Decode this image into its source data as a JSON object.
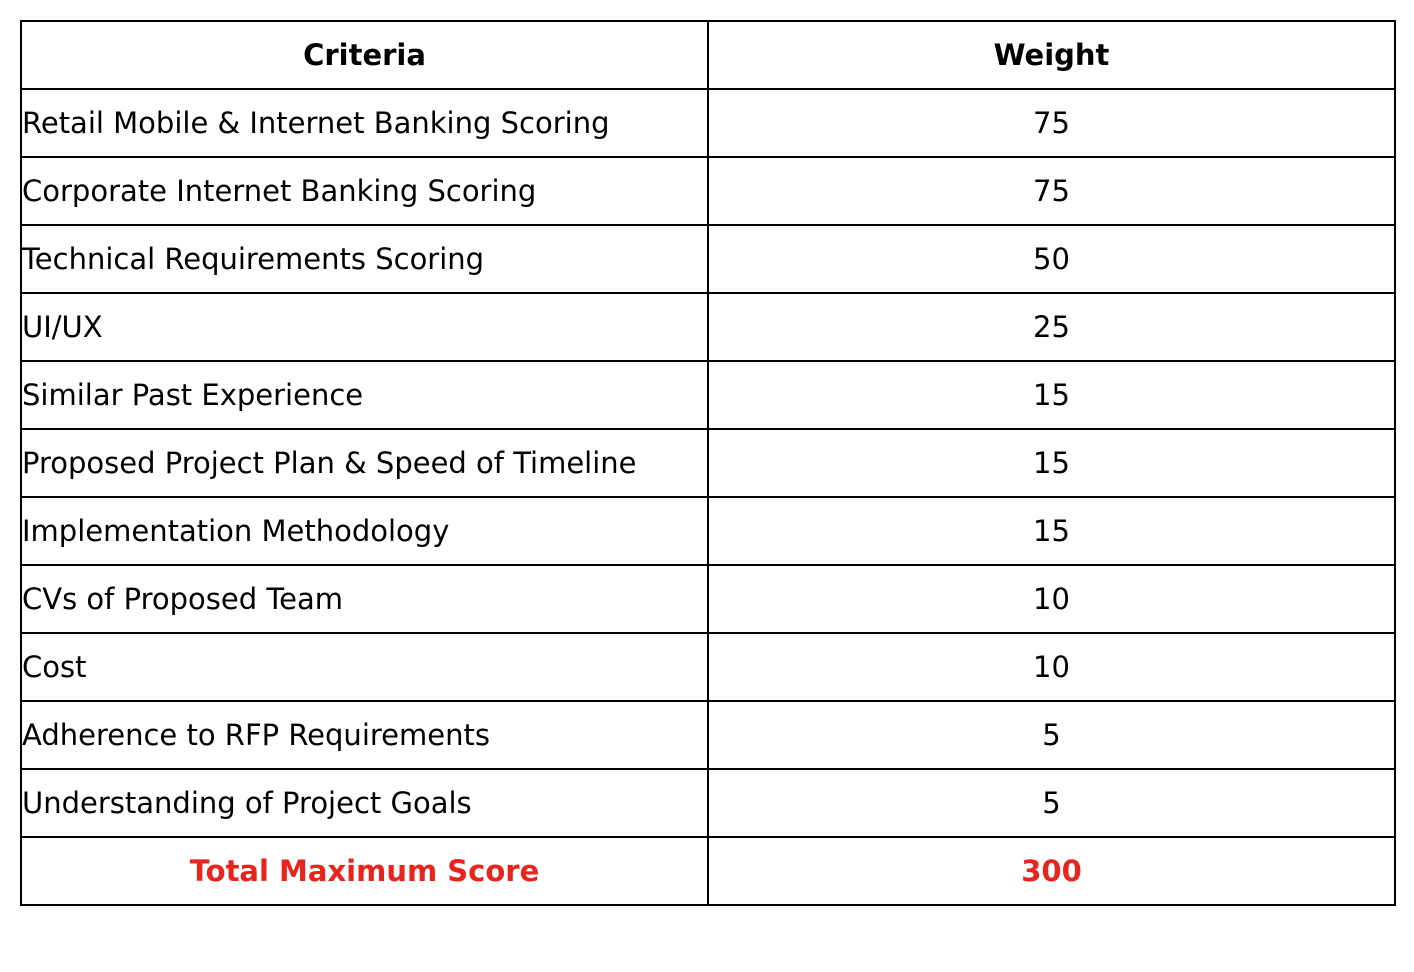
{
  "table": {
    "headers": {
      "criteria": "Criteria",
      "weight": "Weight"
    },
    "rows": [
      {
        "criteria": "Retail Mobile & Internet Banking Scoring",
        "weight": "75"
      },
      {
        "criteria": "Corporate Internet Banking Scoring",
        "weight": "75"
      },
      {
        "criteria": "Technical Requirements Scoring",
        "weight": "50"
      },
      {
        "criteria": "UI/UX",
        "weight": "25"
      },
      {
        "criteria": "Similar Past Experience",
        "weight": "15"
      },
      {
        "criteria": "Proposed Project Plan & Speed of Timeline",
        "weight": "15"
      },
      {
        "criteria": "Implementation Methodology",
        "weight": "15"
      },
      {
        "criteria": "CVs of Proposed Team",
        "weight": "10"
      },
      {
        "criteria": "Cost",
        "weight": "10"
      },
      {
        "criteria": "Adherence to RFP Requirements",
        "weight": "5"
      },
      {
        "criteria": "Understanding of Project Goals",
        "weight": "5"
      }
    ],
    "total": {
      "label": "Total Maximum Score",
      "value": "300",
      "color": "#e8241c"
    }
  }
}
